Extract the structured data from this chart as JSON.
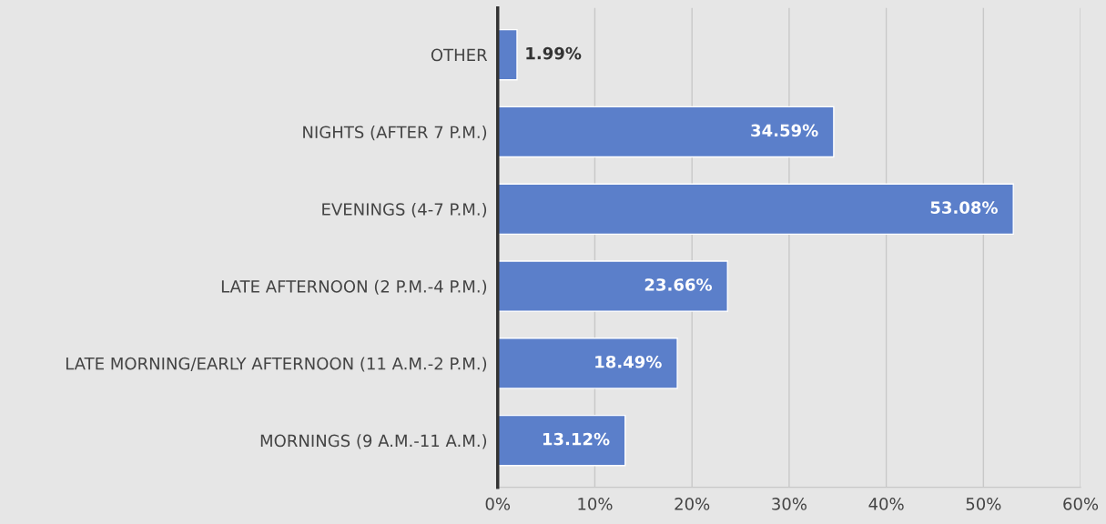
{
  "chart_data": {
    "type": "bar",
    "orientation": "horizontal",
    "categories": [
      "OTHER",
      "NIGHTS (AFTER 7 P.M.)",
      "EVENINGS (4-7 P.M.)",
      "LATE AFTERNOON (2 P.M.-4 P.M.)",
      "LATE MORNING/EARLY AFTERNOON (11 A.M.-2 P.M.)",
      "MORNINGS (9 A.M.-11 A.M.)"
    ],
    "values": [
      1.99,
      34.59,
      53.08,
      23.66,
      18.49,
      13.12
    ],
    "value_labels": [
      "1.99%",
      "34.59%",
      "53.08%",
      "23.66%",
      "18.49%",
      "13.12%"
    ],
    "color": "#5b7fca",
    "xlim": [
      0,
      60
    ],
    "xticks": [
      {
        "value": 0,
        "label": "0%"
      },
      {
        "value": 10,
        "label": "10%"
      },
      {
        "value": 20,
        "label": "20%"
      },
      {
        "value": 30,
        "label": "30%"
      },
      {
        "value": 40,
        "label": "40%"
      },
      {
        "value": 50,
        "label": "50%"
      },
      {
        "value": 60,
        "label": "60%"
      }
    ],
    "grid": "x",
    "legend": false
  }
}
